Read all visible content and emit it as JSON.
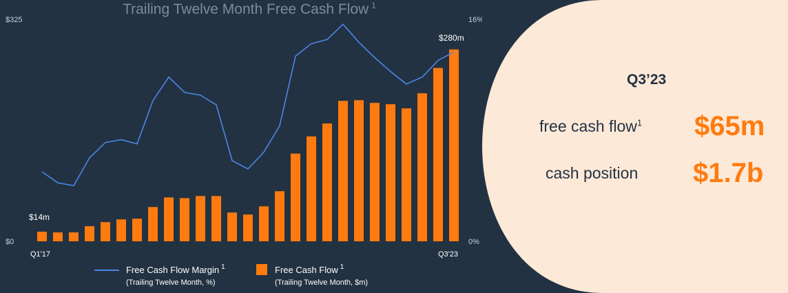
{
  "chart_data": {
    "type": "bar+line",
    "title": "Trailing Twelve Month Free Cash Flow",
    "title_footnote": "1",
    "categories_count": 27,
    "first_category_label": "Q1'17",
    "last_category_label": "Q3'23",
    "y_left": {
      "min": 0,
      "max": 325,
      "min_label": "$0",
      "max_label": "$325"
    },
    "y_right": {
      "min": 0,
      "max": 16,
      "min_label": "0%",
      "max_label": "16%"
    },
    "series": [
      {
        "name": "Free Cash Flow",
        "legend_sub": "(Trailing Twelve Month, $m)",
        "footnote": "1",
        "kind": "bar",
        "color": "#ff7b0f",
        "values": [
          14,
          13,
          13,
          22,
          28,
          32,
          33,
          50,
          64,
          63,
          66,
          66,
          42,
          39,
          51,
          73,
          128,
          153,
          172,
          205,
          206,
          202,
          200,
          194,
          216,
          253,
          280
        ]
      },
      {
        "name": "Free Cash Flow Margin",
        "legend_sub": "(Trailing Twelve Month, %)",
        "footnote": "1",
        "kind": "line",
        "color": "#4a86e8",
        "values": [
          5.0,
          4.2,
          4.0,
          6.0,
          7.1,
          7.3,
          7.0,
          10.1,
          11.8,
          10.7,
          10.5,
          9.8,
          5.8,
          5.2,
          6.4,
          8.3,
          13.3,
          14.2,
          14.5,
          15.6,
          14.3,
          13.2,
          12.2,
          11.3,
          11.8,
          13.0,
          13.6
        ]
      }
    ],
    "annotations": [
      {
        "label": "$14m",
        "index": 0
      },
      {
        "label": "$280m",
        "index": 26
      }
    ],
    "legend_position": "bottom"
  },
  "panel": {
    "title": "Q3’23",
    "metrics": [
      {
        "label": "free cash flow",
        "footnote": "1",
        "value": "$65m"
      },
      {
        "label": "cash position",
        "value": "$1.7b"
      }
    ],
    "background": "#fde9d8"
  }
}
